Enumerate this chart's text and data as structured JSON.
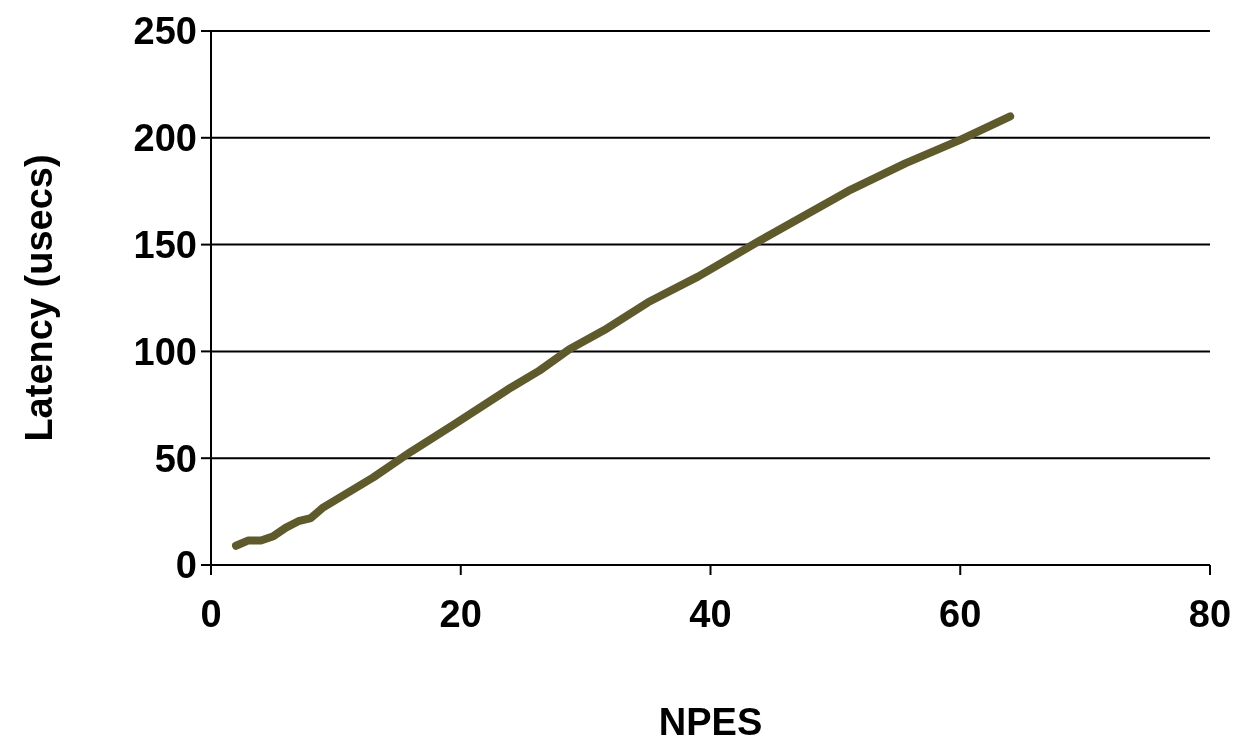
{
  "chart_data": {
    "type": "line",
    "xlabel": "NPES",
    "ylabel": "Latency (usecs)",
    "x": [
      2,
      3,
      4,
      5,
      6,
      7,
      8,
      9,
      11,
      13,
      16,
      19.5,
      24,
      26.3,
      28.7,
      31.5,
      35,
      39,
      44,
      51,
      55.6,
      60,
      64
    ],
    "series": [
      {
        "color": "#5e5a2c",
        "values": [
          9,
          11.5,
          11.5,
          13.5,
          17.5,
          20.5,
          22,
          27,
          34,
          41,
          53,
          66,
          83,
          91,
          101,
          110,
          123,
          135,
          152,
          175,
          188,
          199,
          210
        ]
      }
    ],
    "xlim": [
      0,
      80
    ],
    "xticks": [
      0,
      20,
      40,
      60,
      80
    ],
    "ylim": [
      0,
      250
    ],
    "yticks": [
      0,
      50,
      100,
      150,
      200,
      250
    ],
    "grid": "y",
    "marker": "none",
    "line_style": "solid"
  }
}
